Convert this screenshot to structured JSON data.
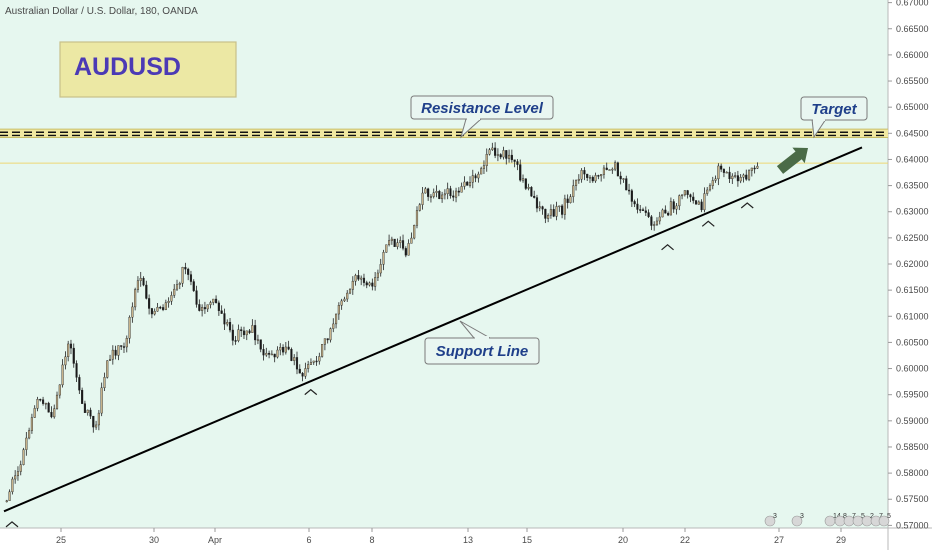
{
  "header": {
    "title": "Australian Dollar / U.S. Dollar, 180, OANDA"
  },
  "symbol_box": {
    "label": "AUDUSD"
  },
  "annotations": {
    "resistance_label": "Resistance Level",
    "target_label": "Target",
    "support_label": "Support Line"
  },
  "events_row": {
    "items": [
      "3",
      "3",
      "14",
      "8",
      "7",
      "5",
      "2",
      "7",
      "5"
    ]
  },
  "colors": {
    "plot_bg": "#e6f7ef",
    "bull": "#c8b48c",
    "bear": "#1a1a1a",
    "band": "#f1e79c",
    "label_bg": "#e9f6f1",
    "label_text": "#1f3f8a",
    "arrow": "#4a6b47",
    "symbol_bg": "#ece8a4",
    "symbol_text": "#4b3ab5"
  },
  "chart_data": {
    "type": "candlestick",
    "title": "Australian Dollar / U.S. Dollar, 180, OANDA",
    "y_ticks": [
      "0.67000",
      "0.66500",
      "0.66000",
      "0.65500",
      "0.65000",
      "0.64500",
      "0.64000",
      "0.63500",
      "0.63000",
      "0.62500",
      "0.62000",
      "0.61500",
      "0.61000",
      "0.60500",
      "0.60000",
      "0.59500",
      "0.59000",
      "0.58500",
      "0.58000",
      "0.57500",
      "0.57000"
    ],
    "ylim": [
      0.5695,
      0.6705
    ],
    "x_ticks": [
      "25",
      "30",
      "Apr",
      "6",
      "8",
      "13",
      "15",
      "20",
      "22",
      "27",
      "29"
    ],
    "resistance_band": [
      0.6442,
      0.6458
    ],
    "resistance_dashed": [
      0.6452,
      0.6446
    ],
    "secondary_level": 0.6393,
    "support_line": {
      "start": {
        "x": 0,
        "y": 0.5727
      },
      "end": {
        "x": 1,
        "y": 0.6423
      }
    },
    "swing_lows": [
      {
        "x": 0.0,
        "y": 0.5722
      },
      {
        "x": 0.345,
        "y": 0.5975
      },
      {
        "x": 0.757,
        "y": 0.6252
      },
      {
        "x": 0.804,
        "y": 0.6297
      },
      {
        "x": 0.849,
        "y": 0.6332
      }
    ],
    "target": {
      "from": {
        "x": 0.885,
        "y": 0.6393
      },
      "to": {
        "x": 0.92,
        "y": 0.6443
      }
    },
    "candle_count": 270,
    "seed": 20190329,
    "path": [
      [
        0.0,
        0.5745
      ],
      [
        0.02,
        0.582
      ],
      [
        0.04,
        0.595
      ],
      [
        0.055,
        0.591
      ],
      [
        0.075,
        0.605
      ],
      [
        0.09,
        0.594
      ],
      [
        0.105,
        0.588
      ],
      [
        0.12,
        0.602
      ],
      [
        0.14,
        0.605
      ],
      [
        0.155,
        0.6175
      ],
      [
        0.17,
        0.6115
      ],
      [
        0.19,
        0.612
      ],
      [
        0.21,
        0.62
      ],
      [
        0.225,
        0.611
      ],
      [
        0.245,
        0.6125
      ],
      [
        0.265,
        0.606
      ],
      [
        0.285,
        0.608
      ],
      [
        0.305,
        0.602
      ],
      [
        0.325,
        0.604
      ],
      [
        0.345,
        0.599
      ],
      [
        0.365,
        0.603
      ],
      [
        0.385,
        0.6105
      ],
      [
        0.405,
        0.618
      ],
      [
        0.425,
        0.616
      ],
      [
        0.445,
        0.625
      ],
      [
        0.465,
        0.6225
      ],
      [
        0.485,
        0.634
      ],
      [
        0.505,
        0.633
      ],
      [
        0.525,
        0.634
      ],
      [
        0.545,
        0.6365
      ],
      [
        0.565,
        0.642
      ],
      [
        0.585,
        0.6405
      ],
      [
        0.605,
        0.634
      ],
      [
        0.625,
        0.629
      ],
      [
        0.645,
        0.6305
      ],
      [
        0.665,
        0.6375
      ],
      [
        0.685,
        0.6365
      ],
      [
        0.705,
        0.639
      ],
      [
        0.725,
        0.633
      ],
      [
        0.745,
        0.628
      ],
      [
        0.765,
        0.63
      ],
      [
        0.785,
        0.6335
      ],
      [
        0.805,
        0.631
      ],
      [
        0.825,
        0.6385
      ],
      [
        0.845,
        0.636
      ],
      [
        0.87,
        0.6385
      ]
    ]
  }
}
